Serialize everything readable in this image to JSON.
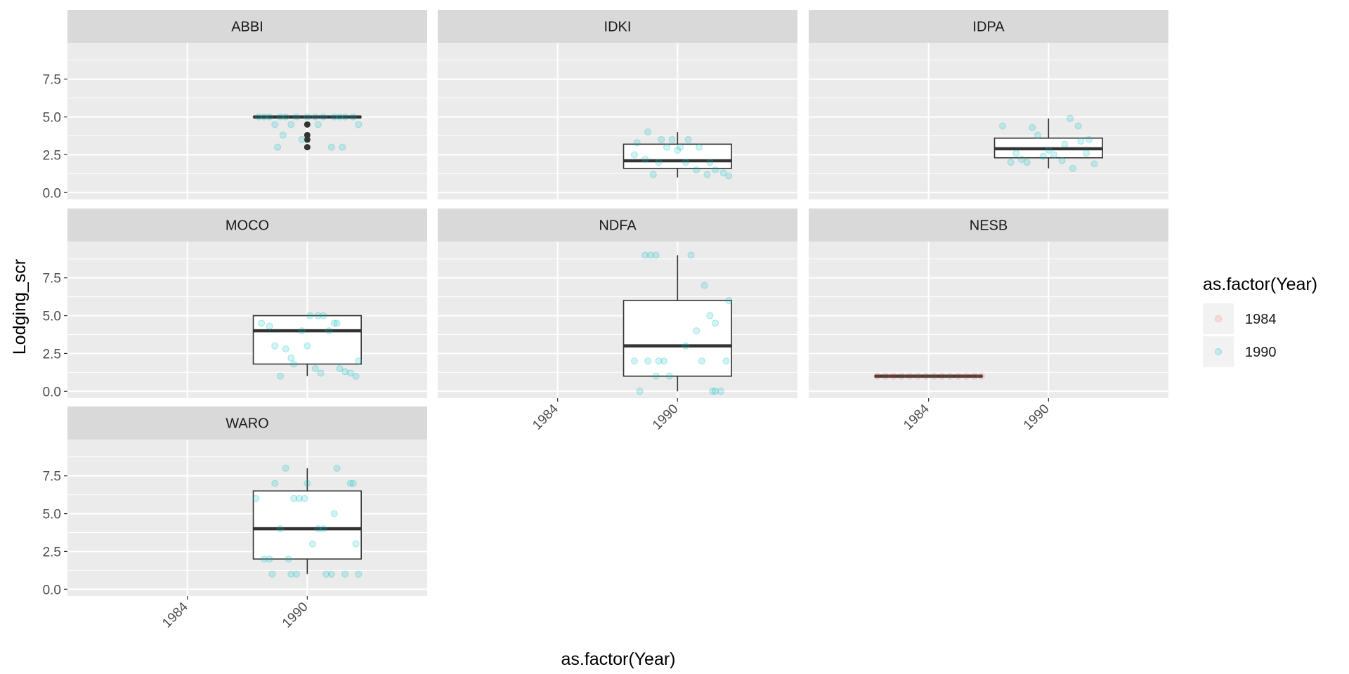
{
  "chart_data": {
    "type": "boxplot-facets",
    "xlabel": "as.factor(Year)",
    "ylabel": "Lodging_scr",
    "legend": {
      "title": "as.factor(Year)",
      "position": "right",
      "items": [
        {
          "label": "1984",
          "color": "#F8766D"
        },
        {
          "label": "1990",
          "color": "#00BFC4"
        }
      ]
    },
    "x_categories": [
      "1984",
      "1990"
    ],
    "y_ticks": [
      "0.0",
      "2.5",
      "5.0",
      "7.5"
    ],
    "ylim": [
      -0.45,
      9.9
    ],
    "grid": true,
    "panels": [
      {
        "title": "ABBI",
        "boxes": [
          {
            "x": "1990",
            "min": 5.0,
            "q1": 5.0,
            "median": 5.0,
            "q3": 5.0,
            "max": 5.0,
            "outliers": [
              4.5,
              3.8,
              3.5,
              3.0
            ],
            "points": [
              [
                -0.9,
                5
              ],
              [
                -0.7,
                5
              ],
              [
                -0.5,
                5
              ],
              [
                -0.4,
                5
              ],
              [
                -0.2,
                5
              ],
              [
                0.0,
                5
              ],
              [
                0.15,
                5
              ],
              [
                0.3,
                5
              ],
              [
                0.5,
                5
              ],
              [
                0.7,
                5
              ],
              [
                0.85,
                5
              ],
              [
                -0.6,
                4.5
              ],
              [
                -0.3,
                4.5
              ],
              [
                0.2,
                4.5
              ],
              [
                0.95,
                4.5
              ],
              [
                -0.45,
                3.8
              ],
              [
                -0.1,
                3.5
              ],
              [
                -0.55,
                3.0
              ],
              [
                0.45,
                3.0
              ],
              [
                0.65,
                3.0
              ],
              [
                -0.8,
                5
              ],
              [
                0.6,
                5
              ]
            ]
          }
        ]
      },
      {
        "title": "IDKI",
        "boxes": [
          {
            "x": "1990",
            "min": 1.0,
            "q1": 1.6,
            "median": 2.1,
            "q3": 3.2,
            "max": 4.0,
            "outliers": [],
            "points": [
              [
                -0.75,
                3.3
              ],
              [
                -0.55,
                4.0
              ],
              [
                -0.3,
                3.5
              ],
              [
                -0.2,
                3.0
              ],
              [
                -0.1,
                3.5
              ],
              [
                0.05,
                3.0
              ],
              [
                0.2,
                3.5
              ],
              [
                0.4,
                3.0
              ],
              [
                -0.8,
                2.5
              ],
              [
                -0.45,
                1.2
              ],
              [
                -0.35,
                2.0
              ],
              [
                0.15,
                2.0
              ],
              [
                0.35,
                1.5
              ],
              [
                0.55,
                1.2
              ],
              [
                0.7,
                1.5
              ],
              [
                0.85,
                1.3
              ],
              [
                0.95,
                1.1
              ],
              [
                -0.6,
                2.2
              ],
              [
                0.0,
                2.8
              ],
              [
                0.6,
                2.0
              ]
            ]
          }
        ]
      },
      {
        "title": "IDPA",
        "boxes": [
          {
            "x": "1990",
            "min": 1.6,
            "q1": 2.3,
            "median": 2.9,
            "q3": 3.6,
            "max": 4.9,
            "outliers": [],
            "points": [
              [
                -0.85,
                4.4
              ],
              [
                -0.6,
                2.6
              ],
              [
                -0.5,
                2.2
              ],
              [
                -0.4,
                2.0
              ],
              [
                -0.3,
                4.3
              ],
              [
                -0.2,
                3.8
              ],
              [
                0.0,
                2.8
              ],
              [
                0.1,
                2.5
              ],
              [
                0.25,
                2.1
              ],
              [
                0.4,
                4.9
              ],
              [
                0.55,
                4.4
              ],
              [
                0.6,
                3.4
              ],
              [
                0.75,
                3.5
              ],
              [
                0.85,
                1.9
              ],
              [
                -0.7,
                2.0
              ],
              [
                0.45,
                1.6
              ],
              [
                -0.1,
                2.4
              ],
              [
                0.3,
                3.2
              ],
              [
                0.7,
                2.6
              ]
            ]
          }
        ]
      },
      {
        "title": "MOCO",
        "boxes": [
          {
            "x": "1990",
            "min": 1.0,
            "q1": 1.8,
            "median": 4.0,
            "q3": 5.0,
            "max": 5.0,
            "outliers": [],
            "points": [
              [
                -0.85,
                4.5
              ],
              [
                -0.7,
                4.3
              ],
              [
                -0.6,
                3.0
              ],
              [
                -0.5,
                1.0
              ],
              [
                -0.4,
                2.8
              ],
              [
                -0.3,
                2.2
              ],
              [
                -0.1,
                4.0
              ],
              [
                0.0,
                3.0
              ],
              [
                0.05,
                5.0
              ],
              [
                0.15,
                1.5
              ],
              [
                0.2,
                5.0
              ],
              [
                0.3,
                5.0
              ],
              [
                0.4,
                4.0
              ],
              [
                0.5,
                4.5
              ],
              [
                0.6,
                1.5
              ],
              [
                0.7,
                1.3
              ],
              [
                0.8,
                1.2
              ],
              [
                0.9,
                1.0
              ],
              [
                0.95,
                2.0
              ],
              [
                -0.25,
                1.8
              ],
              [
                0.25,
                1.2
              ],
              [
                0.55,
                4.5
              ]
            ]
          }
        ]
      },
      {
        "title": "NDFA",
        "boxes": [
          {
            "x": "1990",
            "min": 0.0,
            "q1": 1.0,
            "median": 3.0,
            "q3": 6.0,
            "max": 9.0,
            "outliers": [],
            "points": [
              [
                -0.6,
                9.0
              ],
              [
                -0.5,
                9.0
              ],
              [
                -0.4,
                9.0
              ],
              [
                0.25,
                9.0
              ],
              [
                0.5,
                7.0
              ],
              [
                0.6,
                5.0
              ],
              [
                0.95,
                6.0
              ],
              [
                0.7,
                4.5
              ],
              [
                0.35,
                4.0
              ],
              [
                0.9,
                2.0
              ],
              [
                0.15,
                3.0
              ],
              [
                -0.8,
                2.0
              ],
              [
                -0.7,
                0.0
              ],
              [
                -0.55,
                2.0
              ],
              [
                -0.35,
                2.0
              ],
              [
                -0.25,
                2.0
              ],
              [
                -0.4,
                1.0
              ],
              [
                0.45,
                2.0
              ],
              [
                0.65,
                0.0
              ],
              [
                0.8,
                0.0
              ],
              [
                0.7,
                0.0
              ],
              [
                -0.15,
                1.0
              ]
            ]
          }
        ]
      },
      {
        "title": "NESB",
        "boxes": [
          {
            "x": "1984",
            "min": 1.0,
            "q1": 1.0,
            "median": 1.0,
            "q3": 1.0,
            "max": 1.0,
            "outliers": [],
            "points": [
              [
                -0.95,
                1
              ],
              [
                -0.8,
                1
              ],
              [
                -0.65,
                1
              ],
              [
                -0.5,
                1
              ],
              [
                -0.35,
                1
              ],
              [
                -0.2,
                1
              ],
              [
                -0.05,
                1
              ],
              [
                0.1,
                1
              ],
              [
                0.25,
                1
              ],
              [
                0.4,
                1
              ],
              [
                0.55,
                1
              ],
              [
                0.7,
                1
              ],
              [
                0.85,
                1
              ],
              [
                0.98,
                1
              ]
            ]
          }
        ]
      },
      {
        "title": "WARO",
        "boxes": [
          {
            "x": "1990",
            "min": 1.0,
            "q1": 2.0,
            "median": 4.0,
            "q3": 6.5,
            "max": 8.0,
            "outliers": [],
            "points": [
              [
                -0.95,
                6.0
              ],
              [
                -0.8,
                2.0
              ],
              [
                -0.7,
                2.0
              ],
              [
                -0.65,
                1.0
              ],
              [
                -0.6,
                7.0
              ],
              [
                -0.5,
                4.0
              ],
              [
                -0.4,
                8.0
              ],
              [
                -0.35,
                2.0
              ],
              [
                -0.3,
                1.0
              ],
              [
                -0.2,
                1.0
              ],
              [
                -0.15,
                6.0
              ],
              [
                -0.05,
                6.0
              ],
              [
                0.0,
                7.0
              ],
              [
                0.1,
                3.0
              ],
              [
                0.2,
                4.0
              ],
              [
                0.3,
                4.0
              ],
              [
                0.35,
                1.0
              ],
              [
                0.45,
                1.0
              ],
              [
                0.5,
                5.0
              ],
              [
                0.55,
                8.0
              ],
              [
                0.7,
                1.0
              ],
              [
                0.8,
                7.0
              ],
              [
                0.85,
                7.0
              ],
              [
                0.9,
                3.0
              ],
              [
                0.95,
                1.0
              ],
              [
                -0.25,
                6.0
              ]
            ]
          }
        ]
      }
    ]
  }
}
